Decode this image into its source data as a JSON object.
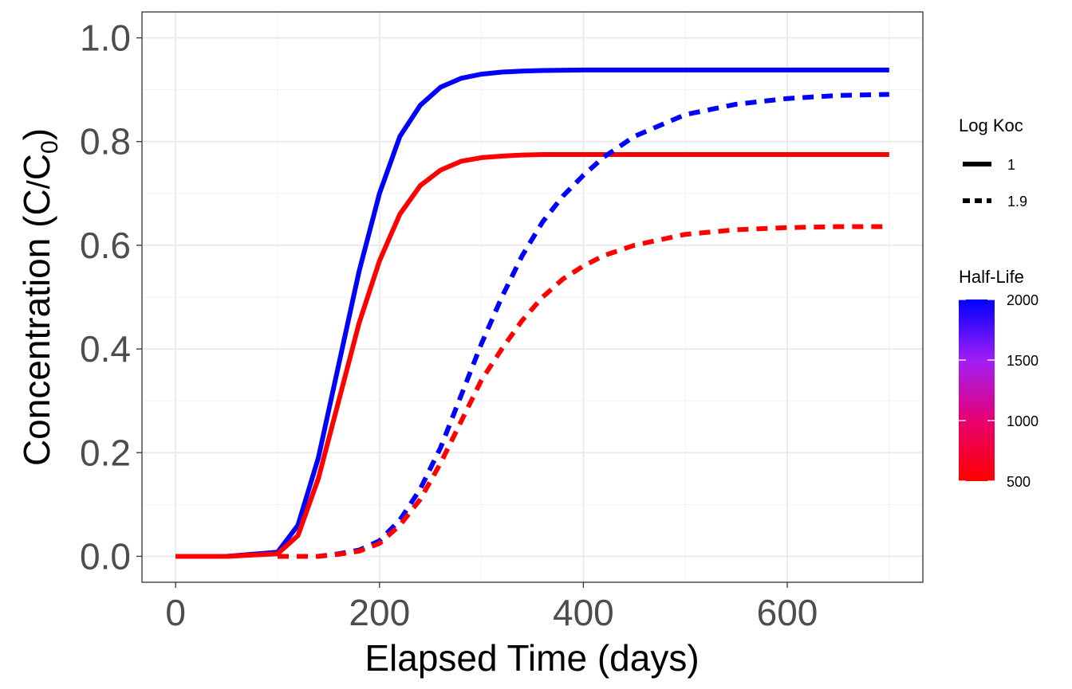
{
  "chart_data": {
    "type": "line",
    "xlabel": "Elapsed Time (days)",
    "ylabel": {
      "prefix": "Concentration (C",
      "slash": "/",
      "base": "C",
      "subscript": "0",
      "suffix": ")"
    },
    "xlim": [
      -33,
      733
    ],
    "ylim": [
      -0.05,
      1.05
    ],
    "x_ticks": [
      0,
      200,
      400,
      600
    ],
    "x_tick_labels": [
      "0",
      "200",
      "400",
      "600"
    ],
    "y_ticks": [
      0.0,
      0.2,
      0.4,
      0.6,
      0.8,
      1.0
    ],
    "y_tick_labels": [
      "0.0",
      "0.2",
      "0.4",
      "0.6",
      "0.8",
      "1.0"
    ],
    "grid": true,
    "legend_position": "right",
    "legends": {
      "linetype": {
        "title": "Log Koc",
        "entries": [
          {
            "label": "1",
            "style": "solid"
          },
          {
            "label": "1.9",
            "style": "dashed"
          }
        ]
      },
      "color": {
        "title": "Half-Life",
        "low_color": "#ff0000",
        "high_color": "#0000ff",
        "range": [
          500,
          2000
        ],
        "breaks": [
          500,
          1000,
          1500,
          2000
        ],
        "break_labels": [
          "500",
          "1000",
          "1500",
          "2000"
        ]
      }
    },
    "series": [
      {
        "half_life": 2000,
        "log_koc": "1",
        "color": "#0000ff",
        "style": "solid",
        "x": [
          0,
          50,
          100,
          120,
          140,
          160,
          180,
          200,
          220,
          240,
          260,
          280,
          300,
          320,
          340,
          360,
          400,
          500,
          600,
          700
        ],
        "y": [
          0.0,
          0.0,
          0.008,
          0.06,
          0.19,
          0.37,
          0.55,
          0.7,
          0.81,
          0.87,
          0.905,
          0.922,
          0.93,
          0.934,
          0.936,
          0.937,
          0.938,
          0.938,
          0.938,
          0.938
        ]
      },
      {
        "half_life": 500,
        "log_koc": "1",
        "color": "#ff0000",
        "style": "solid",
        "x": [
          0,
          50,
          100,
          120,
          140,
          160,
          180,
          200,
          220,
          240,
          260,
          280,
          300,
          320,
          340,
          360,
          400,
          500,
          600,
          700
        ],
        "y": [
          0.0,
          0.0,
          0.005,
          0.04,
          0.15,
          0.3,
          0.45,
          0.57,
          0.66,
          0.715,
          0.745,
          0.762,
          0.769,
          0.772,
          0.774,
          0.775,
          0.775,
          0.775,
          0.775,
          0.775
        ]
      },
      {
        "half_life": 2000,
        "log_koc": "1.9",
        "color": "#0000ff",
        "style": "dashed",
        "x": [
          100,
          140,
          160,
          180,
          200,
          220,
          240,
          260,
          280,
          300,
          320,
          340,
          360,
          380,
          400,
          420,
          450,
          500,
          550,
          600,
          650,
          700
        ],
        "y": [
          0.0,
          0.0,
          0.005,
          0.012,
          0.03,
          0.07,
          0.13,
          0.21,
          0.31,
          0.41,
          0.5,
          0.58,
          0.645,
          0.695,
          0.735,
          0.77,
          0.81,
          0.852,
          0.872,
          0.883,
          0.889,
          0.891
        ]
      },
      {
        "half_life": 500,
        "log_koc": "1.9",
        "color": "#ff0000",
        "style": "dashed",
        "x": [
          100,
          140,
          160,
          180,
          200,
          220,
          240,
          260,
          280,
          300,
          320,
          340,
          360,
          380,
          400,
          420,
          450,
          500,
          550,
          600,
          650,
          700
        ],
        "y": [
          0.0,
          0.0,
          0.004,
          0.01,
          0.025,
          0.06,
          0.11,
          0.18,
          0.26,
          0.34,
          0.4,
          0.455,
          0.5,
          0.535,
          0.56,
          0.58,
          0.6,
          0.621,
          0.63,
          0.634,
          0.636,
          0.636
        ]
      }
    ]
  }
}
